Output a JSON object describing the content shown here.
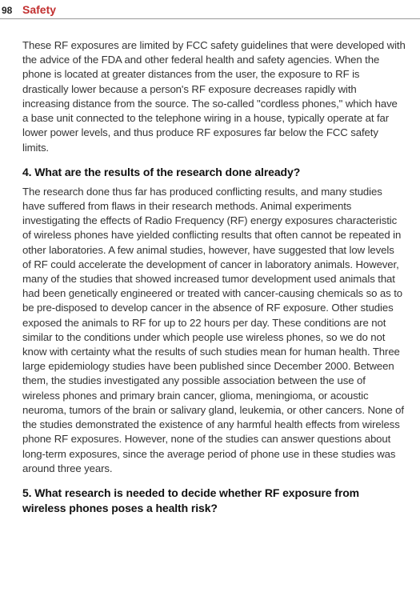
{
  "page_number": "98",
  "section": "Safety",
  "paragraphs": {
    "p1": "These RF exposures are limited by FCC safety guidelines that were developed with the advice of the FDA and other federal health and safety agencies. When the phone is located at greater distances from the user, the exposure to RF is drastically lower because a person's RF exposure decreases rapidly with increasing distance from the source. The so-called \"cordless phones,\" which have a base unit connected to the telephone wiring in a house, typically operate at far lower power levels, and thus produce RF exposures far below the FCC safety limits.",
    "h1": "4. What are the results of the research done already?",
    "p2": "The research done thus far has produced conflicting results, and many studies have suffered from flaws in their research methods. Animal experiments investigating the effects of Radio Frequency (RF) energy exposures characteristic of wireless phones have yielded conflicting results that often cannot be repeated in other laboratories. A few animal studies, however, have suggested that low levels of RF could accelerate the development of cancer in laboratory animals. However, many of the studies that showed increased tumor development used animals that had been genetically engineered or treated with cancer-causing chemicals so as to be pre-disposed to develop cancer in the absence of RF exposure. Other studies exposed the animals to RF for up to 22 hours per day. These conditions are not similar to the conditions under which people use wireless phones, so we do not know with certainty what the results of such studies mean for human health. Three large epidemiology studies have been published since December 2000. Between them, the studies investigated any possible association between the use of wireless phones and primary brain cancer, glioma, meningioma, or acoustic neuroma, tumors of the brain or salivary gland, leukemia, or other cancers. None of the studies demonstrated the existence of any harmful health effects from wireless phone RF exposures. However, none of the studies can answer questions about long-term exposures, since the average period of phone use in these studies was around three years.",
    "h2": "5. What research is needed to decide whether RF exposure from wireless phones poses a health risk?"
  },
  "colors": {
    "title_color": "#c23030",
    "text_color": "#333333",
    "heading_color": "#111111",
    "divider_color": "#999999",
    "background": "#ffffff"
  },
  "typography": {
    "body_fontsize": 13.2,
    "heading_fontsize": 14,
    "pagenum_fontsize": 12,
    "line_height": 1.38
  }
}
